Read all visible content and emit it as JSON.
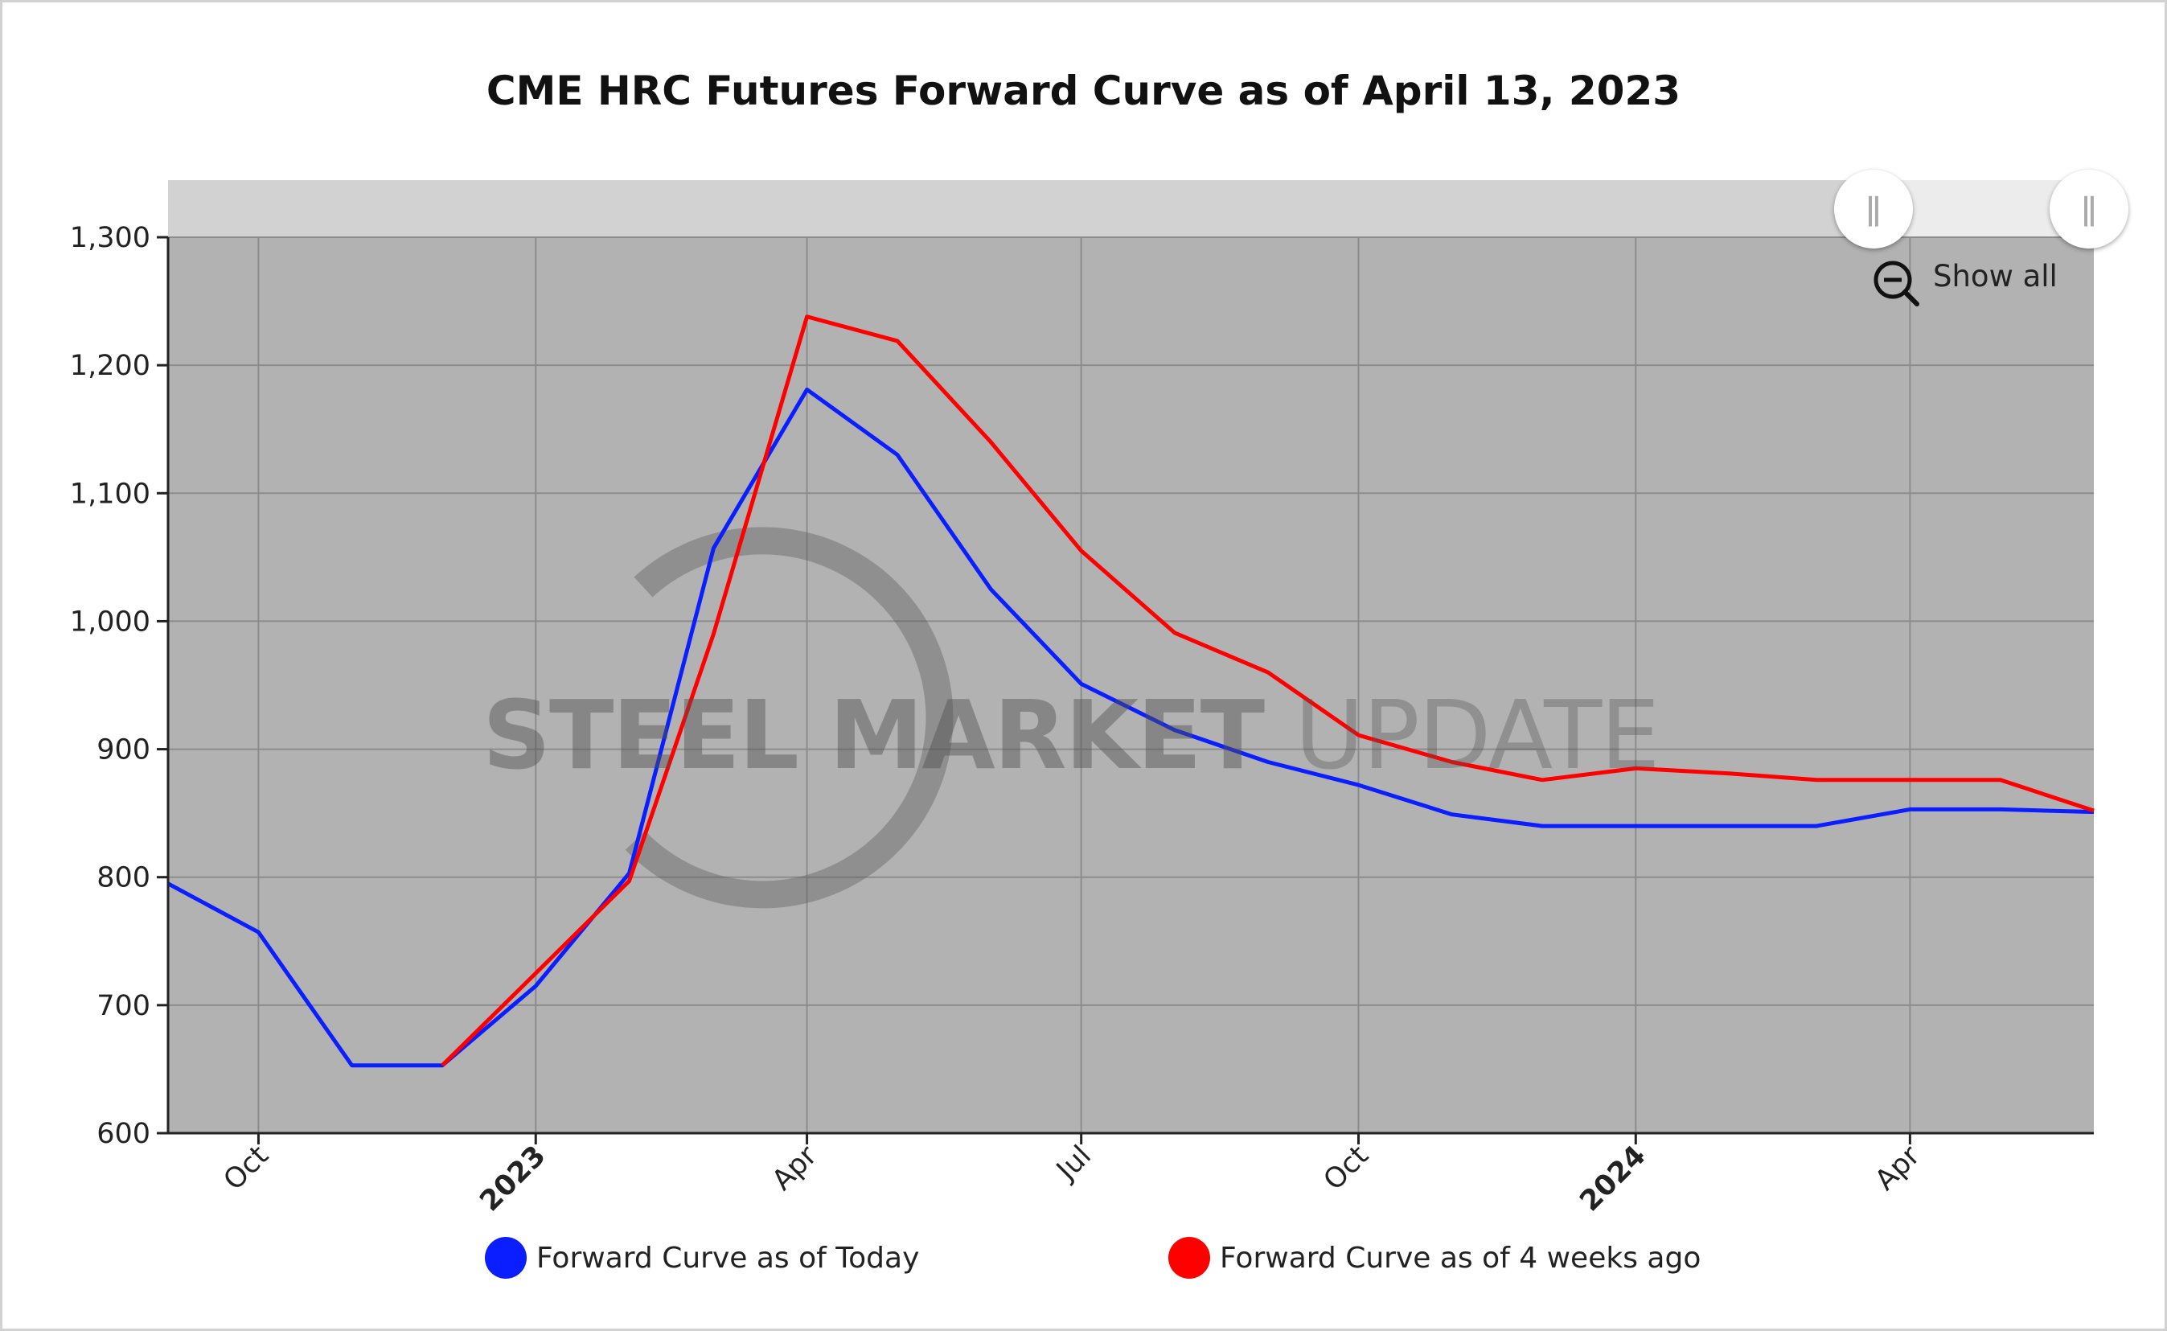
{
  "title": "CME HRC Futures Forward Curve as of April 13, 2023",
  "watermark": {
    "bold": "STEEL MARKET",
    "light": "UPDATE"
  },
  "controls": {
    "show_all_label": "Show all"
  },
  "colors": {
    "today": "#0a1eff",
    "weeks_ago": "#ff0000",
    "plot_bg": "#b2b2b2",
    "navigator": "#d2d2d2"
  },
  "chart_data": {
    "type": "line",
    "title": "CME HRC Futures Forward Curve as of April 13, 2023",
    "xlabel": "",
    "ylabel": "",
    "ylim": [
      600,
      1300
    ],
    "y_ticks": [
      "1,300",
      "1,200",
      "1,100",
      "1,000",
      "900",
      "800",
      "700",
      "600"
    ],
    "x_ticks": [
      {
        "label": "Oct",
        "date": "2022-10-01",
        "bold": false
      },
      {
        "label": "2023",
        "date": "2023-01-01",
        "bold": true
      },
      {
        "label": "Apr",
        "date": "2023-04-01",
        "bold": false
      },
      {
        "label": "Jul",
        "date": "2023-07-01",
        "bold": false
      },
      {
        "label": "Oct",
        "date": "2023-10-01",
        "bold": false
      },
      {
        "label": "2024",
        "date": "2024-01-01",
        "bold": true
      },
      {
        "label": "Apr",
        "date": "2024-04-01",
        "bold": false
      }
    ],
    "xlim": [
      "2022-09-01",
      "2024-06-01"
    ],
    "grid": true,
    "legend_position": "bottom",
    "series": [
      {
        "name": "Forward Curve as of Today",
        "color": "#0a1eff",
        "points": [
          {
            "x": "2022-09-01",
            "y": 795
          },
          {
            "x": "2022-10-01",
            "y": 757
          },
          {
            "x": "2022-11-01",
            "y": 653
          },
          {
            "x": "2022-12-01",
            "y": 653
          },
          {
            "x": "2023-01-01",
            "y": 715
          },
          {
            "x": "2023-02-01",
            "y": 803
          },
          {
            "x": "2023-03-01",
            "y": 1057
          },
          {
            "x": "2023-04-01",
            "y": 1181
          },
          {
            "x": "2023-05-01",
            "y": 1130
          },
          {
            "x": "2023-06-01",
            "y": 1025
          },
          {
            "x": "2023-07-01",
            "y": 951
          },
          {
            "x": "2023-08-01",
            "y": 915
          },
          {
            "x": "2023-09-01",
            "y": 890
          },
          {
            "x": "2023-10-01",
            "y": 872
          },
          {
            "x": "2023-11-01",
            "y": 849
          },
          {
            "x": "2023-12-01",
            "y": 840
          },
          {
            "x": "2024-01-01",
            "y": 840
          },
          {
            "x": "2024-02-01",
            "y": 840
          },
          {
            "x": "2024-03-01",
            "y": 840
          },
          {
            "x": "2024-04-01",
            "y": 853
          },
          {
            "x": "2024-05-01",
            "y": 853
          },
          {
            "x": "2024-06-01",
            "y": 851
          }
        ]
      },
      {
        "name": "Forward Curve as of 4 weeks ago",
        "color": "#ff0000",
        "points": [
          {
            "x": "2022-12-01",
            "y": 653
          },
          {
            "x": "2023-01-01",
            "y": 725
          },
          {
            "x": "2023-02-01",
            "y": 797
          },
          {
            "x": "2023-03-01",
            "y": 990
          },
          {
            "x": "2023-04-01",
            "y": 1238
          },
          {
            "x": "2023-05-01",
            "y": 1219
          },
          {
            "x": "2023-06-01",
            "y": 1140
          },
          {
            "x": "2023-07-01",
            "y": 1055
          },
          {
            "x": "2023-08-01",
            "y": 991
          },
          {
            "x": "2023-09-01",
            "y": 960
          },
          {
            "x": "2023-10-01",
            "y": 911
          },
          {
            "x": "2023-11-01",
            "y": 890
          },
          {
            "x": "2023-12-01",
            "y": 876
          },
          {
            "x": "2024-01-01",
            "y": 885
          },
          {
            "x": "2024-02-01",
            "y": 881
          },
          {
            "x": "2024-03-01",
            "y": 876
          },
          {
            "x": "2024-04-01",
            "y": 876
          },
          {
            "x": "2024-05-01",
            "y": 876
          },
          {
            "x": "2024-06-01",
            "y": 852
          }
        ]
      }
    ]
  }
}
